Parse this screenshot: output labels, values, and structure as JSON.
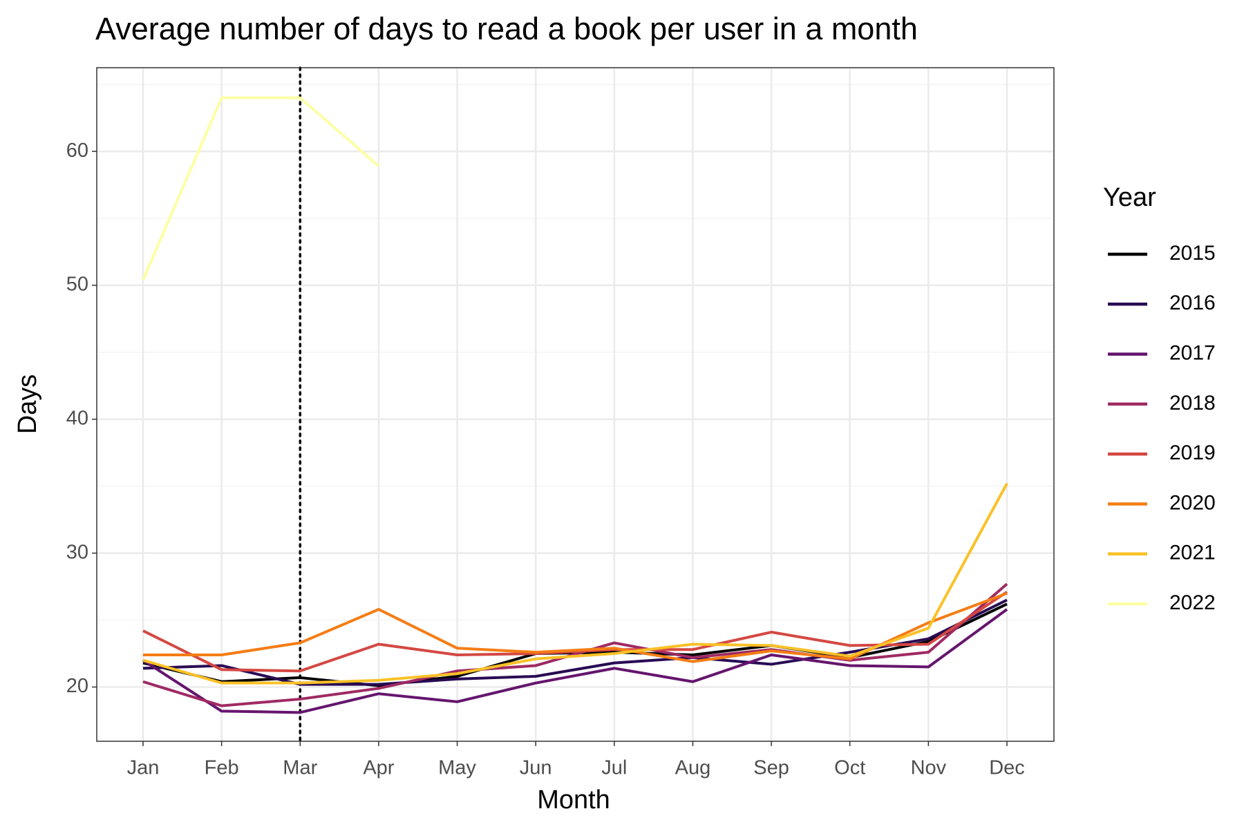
{
  "chart_data": {
    "type": "line",
    "title": "Average number of days to read a book per user in a month",
    "x_label": "Month",
    "y_label": "Days",
    "legend_title": "Year",
    "categories": [
      "Jan",
      "Feb",
      "Mar",
      "Apr",
      "May",
      "Jun",
      "Jul",
      "Aug",
      "Sep",
      "Oct",
      "Nov",
      "Dec"
    ],
    "series": [
      {
        "name": "2015",
        "color": "#000004",
        "values": [
          21.8,
          20.4,
          20.7,
          20.1,
          20.8,
          22.5,
          22.6,
          22.4,
          23.1,
          22.2,
          23.4,
          26.2
        ]
      },
      {
        "name": "2016",
        "color": "#280b53",
        "values": [
          21.4,
          21.6,
          20.2,
          20.2,
          20.6,
          20.8,
          21.8,
          22.2,
          21.7,
          22.6,
          23.6,
          26.5
        ]
      },
      {
        "name": "2017",
        "color": "#65156e",
        "values": [
          22.0,
          18.2,
          18.1,
          19.5,
          18.9,
          20.3,
          21.4,
          20.4,
          22.4,
          21.6,
          21.5,
          25.8
        ]
      },
      {
        "name": "2018",
        "color": "#9f2a63",
        "values": [
          20.4,
          18.6,
          19.1,
          19.9,
          21.2,
          21.6,
          23.3,
          22.2,
          22.8,
          22.0,
          22.6,
          27.7
        ]
      },
      {
        "name": "2019",
        "color": "#d44842",
        "values": [
          24.2,
          21.3,
          21.2,
          23.2,
          22.4,
          22.5,
          22.8,
          22.8,
          24.1,
          23.1,
          23.2,
          27.1
        ]
      },
      {
        "name": "2020",
        "color": "#f57d15",
        "values": [
          22.4,
          22.4,
          23.3,
          25.8,
          22.9,
          22.6,
          22.9,
          21.9,
          22.7,
          22.1,
          24.8,
          27.0
        ]
      },
      {
        "name": "2021",
        "color": "#fac127",
        "values": [
          22.0,
          20.3,
          20.3,
          20.5,
          21.0,
          22.1,
          22.5,
          23.2,
          23.1,
          22.3,
          24.4,
          35.2
        ]
      },
      {
        "name": "2022",
        "color": "#fcffa4",
        "values": [
          50.4,
          64.0,
          64.0,
          58.9,
          null,
          null,
          null,
          null,
          null,
          null,
          null,
          null
        ]
      }
    ],
    "ylim": [
      15.95,
      66.25
    ],
    "yticks": [
      20,
      30,
      40,
      50,
      60
    ],
    "grid": true,
    "vline": {
      "x": "Mar",
      "linestyle": "dotted",
      "color": "#000000"
    },
    "legend": "right"
  }
}
